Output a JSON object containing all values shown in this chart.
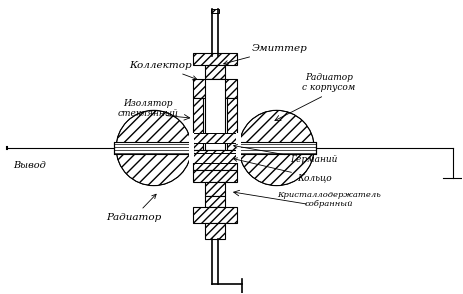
{
  "bg_color": "#ffffff",
  "labels": {
    "collector": "Коллектор",
    "isolator": "Изолятор\nстеклянный",
    "emitter": "Эмиттер",
    "radiator_corp": "Радиатор\nс корпусом",
    "germanium": "Германий",
    "ring": "Кольцо",
    "crystal_holder": "Кристаллодержатель\nсобранный",
    "radiator": "Радиатор",
    "vyvod": "Вывод"
  },
  "fig_width": 4.64,
  "fig_height": 2.94,
  "dpi": 100
}
